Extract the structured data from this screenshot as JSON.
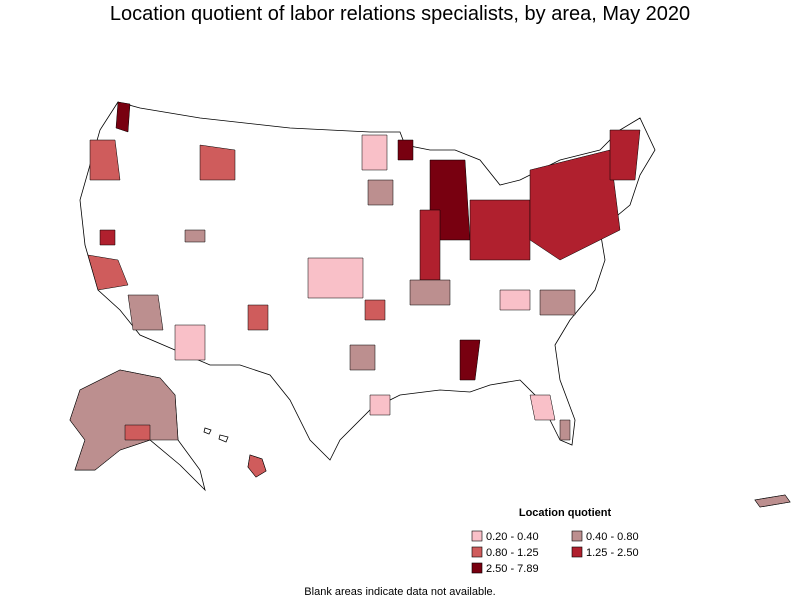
{
  "title": "Location quotient of labor relations specialists, by area, May 2020",
  "legend": {
    "title": "Location quotient",
    "entries": [
      {
        "label": "0.20 - 0.40",
        "color": "#f9c0c8"
      },
      {
        "label": "0.40 - 0.80",
        "color": "#bc8f8f"
      },
      {
        "label": "0.80 - 1.25",
        "color": "#cf5c5c"
      },
      {
        "label": "1.25 - 2.50",
        "color": "#b0202e"
      },
      {
        "label": "2.50 - 7.89",
        "color": "#780010"
      }
    ]
  },
  "note": "Blank areas indicate data not available."
}
